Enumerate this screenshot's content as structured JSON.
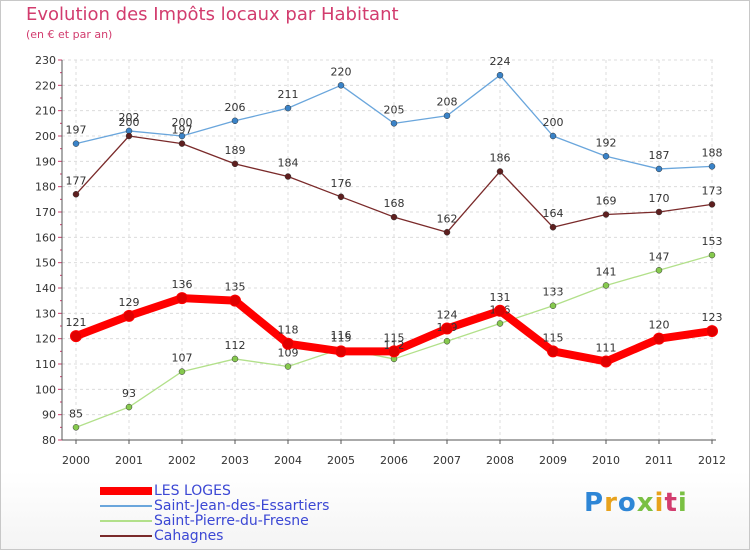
{
  "header": {
    "title": "Evolution des Impôts locaux par Habitant",
    "subtitle": "(en € et par an)"
  },
  "brand": {
    "text": "Proxiti",
    "colors": [
      "#2e86d6",
      "#e8a21c",
      "#2e86d6",
      "#7ac043",
      "#e8a21c",
      "#d23c6e",
      "#7ac043"
    ]
  },
  "chart_data": {
    "type": "line",
    "x": [
      2000,
      2001,
      2002,
      2003,
      2004,
      2005,
      2006,
      2007,
      2008,
      2009,
      2010,
      2011,
      2012
    ],
    "x_tick_labels": [
      "2000",
      "2001",
      "2002",
      "2003",
      "2004",
      "2005",
      "2006",
      "2007",
      "2008",
      "2009",
      "2010",
      "2011",
      "2012"
    ],
    "ylim": [
      80,
      230
    ],
    "y_ticks": [
      80,
      90,
      100,
      110,
      120,
      130,
      140,
      150,
      160,
      170,
      180,
      190,
      200,
      210,
      220,
      230
    ],
    "grid": true,
    "legend_position": "bottom-left",
    "series": [
      {
        "name": "LES LOGES",
        "values": [
          121,
          129,
          136,
          135,
          118,
          115,
          115,
          124,
          131,
          115,
          111,
          120,
          123
        ],
        "color": "#ff0000",
        "marker_color": "#e00000",
        "emphasis": true
      },
      {
        "name": "Saint-Jean-des-Essartiers",
        "values": [
          197,
          202,
          200,
          206,
          211,
          220,
          205,
          208,
          224,
          200,
          192,
          187,
          188
        ],
        "color": "#6aa6dc",
        "marker_color": "#3a83c8",
        "emphasis": false
      },
      {
        "name": "Saint-Pierre-du-Fresne",
        "values": [
          85,
          93,
          107,
          112,
          109,
          116,
          112,
          119,
          126,
          133,
          141,
          147,
          153
        ],
        "color": "#b2e08a",
        "marker_color": "#86c94e",
        "emphasis": false
      },
      {
        "name": "Cahagnes",
        "values": [
          177,
          200,
          197,
          189,
          184,
          176,
          168,
          162,
          186,
          164,
          169,
          170,
          173
        ],
        "color": "#7a2a2a",
        "marker_color": "#5e1f1f",
        "emphasis": false
      }
    ]
  }
}
